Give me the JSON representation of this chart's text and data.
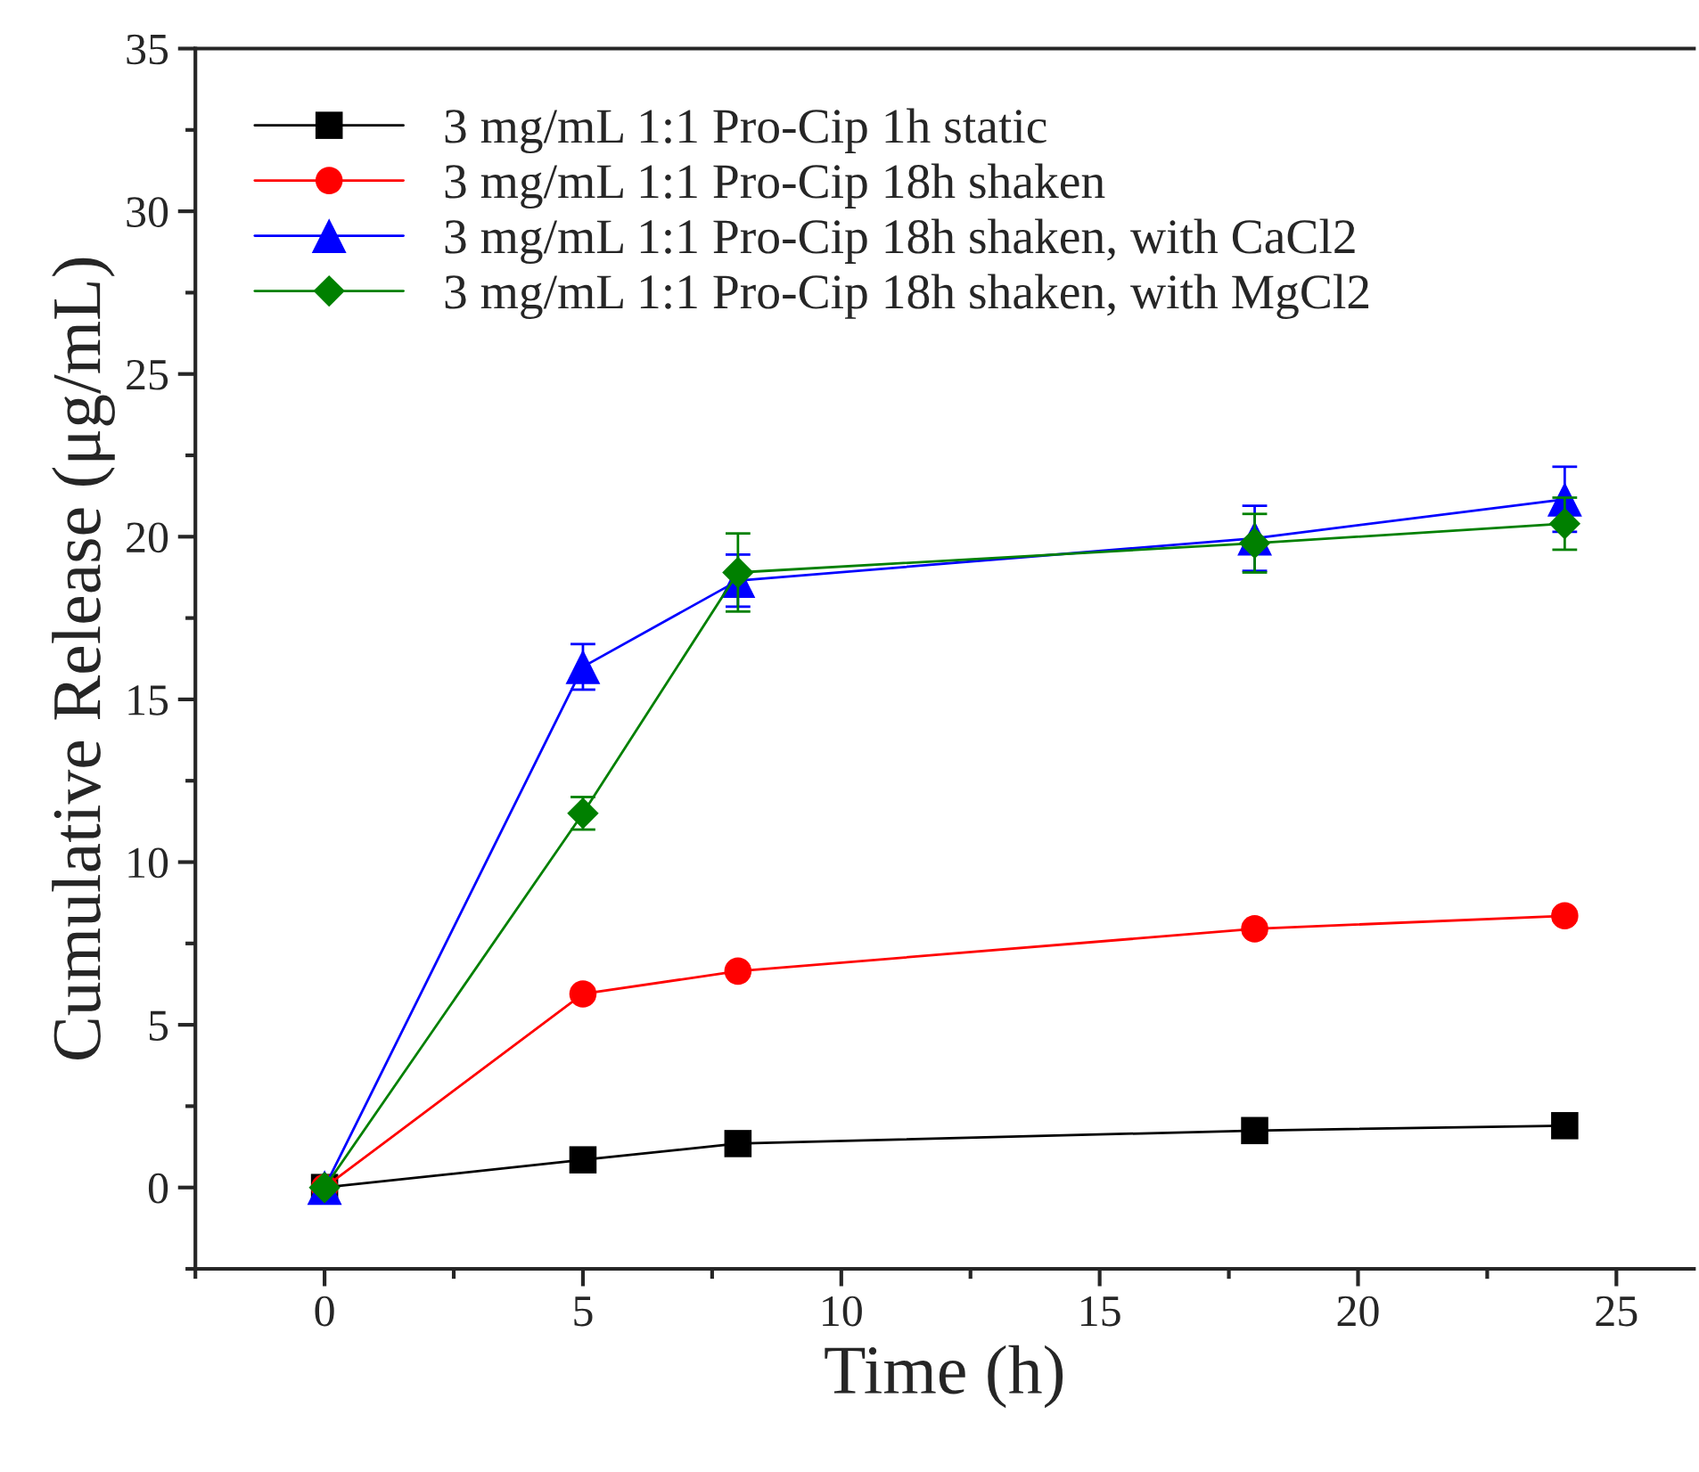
{
  "chart_data": {
    "type": "line",
    "xlabel": "Time (h)",
    "ylabel": "Cumulative Release (μg/mL)",
    "x": [
      0,
      5,
      8,
      18,
      24
    ],
    "series": [
      {
        "name": "3 mg/mL 1:1 Pro-Cip 1h static",
        "color": "#000000",
        "marker": "square",
        "values": [
          0,
          0.85,
          1.35,
          1.75,
          1.9
        ],
        "errors": [
          null,
          0.1,
          0.15,
          0.3,
          0.15
        ]
      },
      {
        "name": "3 mg/mL 1:1 Pro-Cip 18h shaken",
        "color": "#ff0000",
        "marker": "circle",
        "values": [
          0,
          5.95,
          6.65,
          7.95,
          8.35
        ],
        "errors": [
          null,
          0.15,
          0.15,
          0.15,
          0.15
        ]
      },
      {
        "name": "3 mg/mL 1:1 Pro-Cip 18h shaken, with CaCl2",
        "color": "#0000ff",
        "marker": "triangle",
        "values": [
          0,
          16.0,
          18.65,
          19.95,
          21.15
        ],
        "errors": [
          null,
          0.7,
          0.8,
          1.0,
          1.0
        ]
      },
      {
        "name": "3 mg/mL 1:1 Pro-Cip 18h shaken, with MgCl2",
        "color": "#008000",
        "marker": "diamond",
        "values": [
          0,
          11.5,
          18.9,
          19.8,
          20.4
        ],
        "errors": [
          null,
          0.5,
          1.2,
          0.9,
          0.8
        ]
      }
    ],
    "xlim": [
      -2.5,
      26.5
    ],
    "xticks": [
      0,
      5,
      10,
      15,
      20,
      25
    ],
    "ylim": [
      -2.5,
      35
    ],
    "yticks": [
      0,
      5,
      10,
      15,
      20,
      25,
      30,
      35
    ],
    "legend": "top left",
    "grid": false,
    "line_style": "solid"
  }
}
